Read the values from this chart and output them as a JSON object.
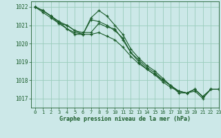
{
  "title": "Graphe pression niveau de la mer (hPa)",
  "background_color": "#cce8e8",
  "grid_color": "#99ccbb",
  "line_color": "#1a5c2a",
  "xlim": [
    -0.5,
    23
  ],
  "ylim": [
    1016.5,
    1022.3
  ],
  "yticks": [
    1017,
    1018,
    1019,
    1020,
    1021,
    1022
  ],
  "xticks": [
    0,
    1,
    2,
    3,
    4,
    5,
    6,
    7,
    8,
    9,
    10,
    11,
    12,
    13,
    14,
    15,
    16,
    17,
    18,
    19,
    20,
    21,
    22,
    23
  ],
  "series": [
    [
      1022.0,
      1021.8,
      1021.5,
      1021.2,
      1020.8,
      1020.5,
      1020.5,
      1020.5,
      1020.6,
      1020.4,
      1020.2,
      1019.8,
      1019.3,
      1018.9,
      1018.6,
      1018.3,
      1018.0,
      1017.7,
      1017.4,
      1017.3,
      1017.5,
      1017.1,
      1017.5,
      1017.5
    ],
    [
      1022.0,
      1021.8,
      1021.5,
      1021.1,
      1020.8,
      1020.6,
      1020.5,
      1021.3,
      1021.2,
      1021.0,
      1020.7,
      1020.3,
      1019.5,
      1019.1,
      1018.7,
      1018.4,
      1018.0,
      1017.7,
      1017.4,
      1017.3,
      1017.5,
      1017.1,
      1017.5,
      1017.5
    ],
    [
      1022.0,
      1021.7,
      1021.4,
      1021.1,
      1021.0,
      1020.7,
      1020.5,
      1021.4,
      1021.8,
      1021.5,
      1021.0,
      1020.5,
      1019.7,
      1019.2,
      1018.8,
      1018.5,
      1018.1,
      1017.7,
      1017.3,
      1017.3,
      1017.4,
      1017.0,
      1017.5,
      1017.5
    ],
    [
      1022.0,
      1021.8,
      1021.5,
      1021.2,
      1021.0,
      1020.7,
      1020.6,
      1020.6,
      1021.1,
      1020.9,
      1020.8,
      1020.2,
      1019.5,
      1019.0,
      1018.6,
      1018.3,
      1017.9,
      1017.6,
      1017.4,
      1017.3,
      1017.5,
      1017.1,
      1017.5,
      1017.5
    ]
  ]
}
